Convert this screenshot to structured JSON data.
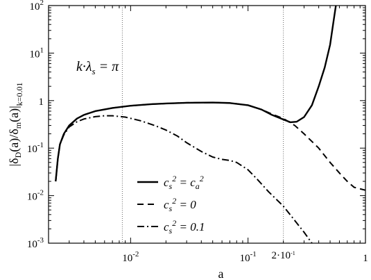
{
  "chart_data": {
    "type": "line",
    "xlabel": "a",
    "ylabel": "|δD(a)/δm(a)|k=0.01",
    "xscale": "log",
    "yscale": "log",
    "xlim": [
      0.002,
      1
    ],
    "ylim": [
      0.001,
      100
    ],
    "grid": false,
    "legend_position": "lower-center",
    "x_tick_labels": [
      "10-2",
      "10-1",
      "2·10-1",
      "1"
    ],
    "y_tick_labels": [
      "10-3",
      "10-2",
      "10-1",
      "1",
      "101",
      "102"
    ],
    "annotation": "k·λs = π",
    "vlines": [
      0.0085,
      0.2
    ],
    "series": [
      {
        "name": "cs2 = ca2",
        "style": "solid",
        "points": [
          [
            0.0023,
            0.02
          ],
          [
            0.0024,
            0.06
          ],
          [
            0.0025,
            0.12
          ],
          [
            0.0027,
            0.2
          ],
          [
            0.003,
            0.3
          ],
          [
            0.0035,
            0.42
          ],
          [
            0.004,
            0.5
          ],
          [
            0.005,
            0.6
          ],
          [
            0.007,
            0.7
          ],
          [
            0.01,
            0.78
          ],
          [
            0.015,
            0.84
          ],
          [
            0.02,
            0.87
          ],
          [
            0.03,
            0.9
          ],
          [
            0.05,
            0.91
          ],
          [
            0.07,
            0.89
          ],
          [
            0.1,
            0.8
          ],
          [
            0.13,
            0.65
          ],
          [
            0.16,
            0.5
          ],
          [
            0.2,
            0.4
          ],
          [
            0.23,
            0.35
          ],
          [
            0.26,
            0.36
          ],
          [
            0.3,
            0.45
          ],
          [
            0.35,
            0.8
          ],
          [
            0.4,
            2
          ],
          [
            0.45,
            5
          ],
          [
            0.5,
            15
          ],
          [
            0.53,
            40
          ],
          [
            0.56,
            100
          ]
        ]
      },
      {
        "name": "cs2 = 0",
        "style": "dashed",
        "points": [
          [
            0.0023,
            0.02
          ],
          [
            0.0024,
            0.06
          ],
          [
            0.0025,
            0.12
          ],
          [
            0.0027,
            0.2
          ],
          [
            0.003,
            0.3
          ],
          [
            0.0035,
            0.42
          ],
          [
            0.004,
            0.5
          ],
          [
            0.005,
            0.6
          ],
          [
            0.007,
            0.7
          ],
          [
            0.01,
            0.78
          ],
          [
            0.015,
            0.84
          ],
          [
            0.02,
            0.87
          ],
          [
            0.03,
            0.9
          ],
          [
            0.05,
            0.91
          ],
          [
            0.07,
            0.89
          ],
          [
            0.1,
            0.8
          ],
          [
            0.13,
            0.65
          ],
          [
            0.16,
            0.52
          ],
          [
            0.2,
            0.42
          ],
          [
            0.25,
            0.3
          ],
          [
            0.3,
            0.2
          ],
          [
            0.4,
            0.1
          ],
          [
            0.5,
            0.05
          ],
          [
            0.6,
            0.03
          ],
          [
            0.7,
            0.02
          ],
          [
            0.8,
            0.015
          ],
          [
            1,
            0.013
          ]
        ]
      },
      {
        "name": "cs2 = 0.1",
        "style": "dashdot",
        "points": [
          [
            0.0023,
            0.02
          ],
          [
            0.0024,
            0.06
          ],
          [
            0.0025,
            0.12
          ],
          [
            0.0027,
            0.19
          ],
          [
            0.003,
            0.28
          ],
          [
            0.0035,
            0.36
          ],
          [
            0.004,
            0.41
          ],
          [
            0.005,
            0.46
          ],
          [
            0.006,
            0.48
          ],
          [
            0.007,
            0.48
          ],
          [
            0.009,
            0.45
          ],
          [
            0.012,
            0.38
          ],
          [
            0.016,
            0.3
          ],
          [
            0.02,
            0.24
          ],
          [
            0.025,
            0.18
          ],
          [
            0.03,
            0.13
          ],
          [
            0.04,
            0.085
          ],
          [
            0.05,
            0.065
          ],
          [
            0.06,
            0.058
          ],
          [
            0.07,
            0.055
          ],
          [
            0.08,
            0.05
          ],
          [
            0.1,
            0.035
          ],
          [
            0.12,
            0.022
          ],
          [
            0.15,
            0.012
          ],
          [
            0.2,
            0.006
          ],
          [
            0.25,
            0.003
          ],
          [
            0.3,
            0.0017
          ],
          [
            0.35,
            0.001
          ]
        ]
      }
    ]
  }
}
